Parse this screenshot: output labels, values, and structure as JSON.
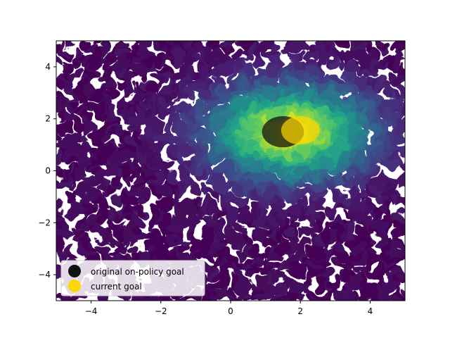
{
  "chart_data": {
    "type": "scatter",
    "title": "",
    "xlabel": "",
    "ylabel": "",
    "xlim": [
      -5,
      5
    ],
    "ylim": [
      -5,
      5
    ],
    "x_ticks": [
      -4,
      -2,
      0,
      2,
      4
    ],
    "y_ticks": [
      -4,
      -2,
      0,
      2,
      4
    ],
    "x_tick_labels": [
      "−4",
      "−2",
      "0",
      "2",
      "4"
    ],
    "y_tick_labels": [
      "−4",
      "−2",
      "0",
      "2",
      "4"
    ],
    "grid": false,
    "colormap": "viridis",
    "legend_placement": "lower-left",
    "series": [
      {
        "name": "original on-policy goal",
        "color": "#111111",
        "center": [
          1.5,
          1.5
        ],
        "radius": 0.6
      },
      {
        "name": "current goal",
        "color": "#ffd700",
        "center": [
          2.0,
          1.55
        ],
        "radius": 0.55
      }
    ],
    "density_peak": [
      1.7,
      1.5
    ]
  }
}
